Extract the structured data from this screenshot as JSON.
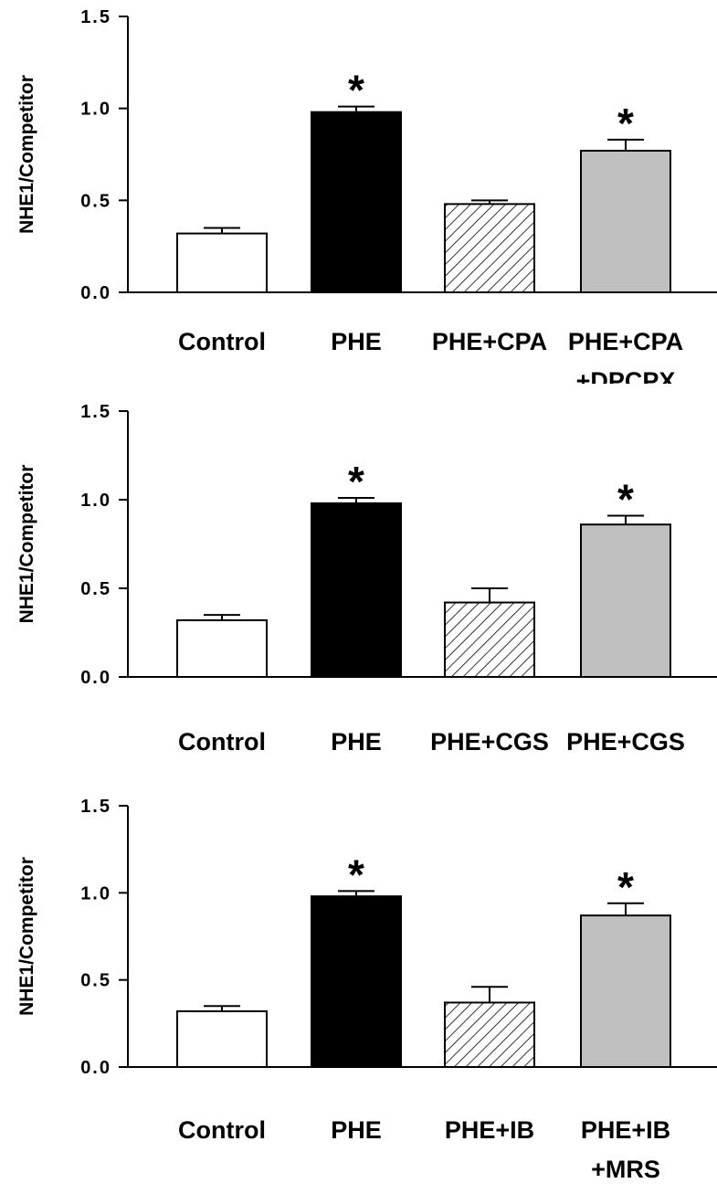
{
  "colors": {
    "control": "#ffffff",
    "phe": "#000000",
    "hatched": "hatch",
    "gray": "#c0c0c0"
  },
  "chart_data": [
    {
      "type": "bar",
      "ylabel": "NHE1/Competitor",
      "ylim": [
        0,
        1.5
      ],
      "yticks": [
        "0.0",
        "0.5",
        "1.0",
        "1.5"
      ],
      "categories": [
        [
          "Control"
        ],
        [
          "PHE"
        ],
        [
          "PHE+CPA"
        ],
        [
          "PHE+CPA",
          "+DPCPX"
        ]
      ],
      "values": [
        0.32,
        0.98,
        0.48,
        0.77
      ],
      "errors": [
        0.03,
        0.03,
        0.02,
        0.06
      ],
      "significance": [
        "",
        "*",
        "",
        "*"
      ],
      "fills": [
        "white",
        "black",
        "hatch",
        "gray"
      ]
    },
    {
      "type": "bar",
      "ylabel": "NHE1/Competitor",
      "ylim": [
        0,
        1.5
      ],
      "yticks": [
        "0.0",
        "0.5",
        "1.0",
        "1.5"
      ],
      "categories": [
        [
          "Control"
        ],
        [
          "PHE"
        ],
        [
          "PHE+CGS"
        ],
        [
          "PHE+CGS"
        ]
      ],
      "values": [
        0.32,
        0.98,
        0.42,
        0.86
      ],
      "errors": [
        0.03,
        0.03,
        0.08,
        0.05
      ],
      "significance": [
        "",
        "*",
        "",
        "*"
      ],
      "fills": [
        "white",
        "black",
        "hatch",
        "gray"
      ]
    },
    {
      "type": "bar",
      "ylabel": "NHE1/Competitor",
      "ylim": [
        0,
        1.5
      ],
      "yticks": [
        "0.0",
        "0.5",
        "1.0",
        "1.5"
      ],
      "categories": [
        [
          "Control"
        ],
        [
          "PHE"
        ],
        [
          "PHE+IB"
        ],
        [
          "PHE+IB",
          "+MRS"
        ]
      ],
      "values": [
        0.32,
        0.98,
        0.37,
        0.87
      ],
      "errors": [
        0.03,
        0.03,
        0.09,
        0.07
      ],
      "significance": [
        "",
        "*",
        "",
        "*"
      ],
      "fills": [
        "white",
        "black",
        "hatch",
        "gray"
      ]
    }
  ]
}
